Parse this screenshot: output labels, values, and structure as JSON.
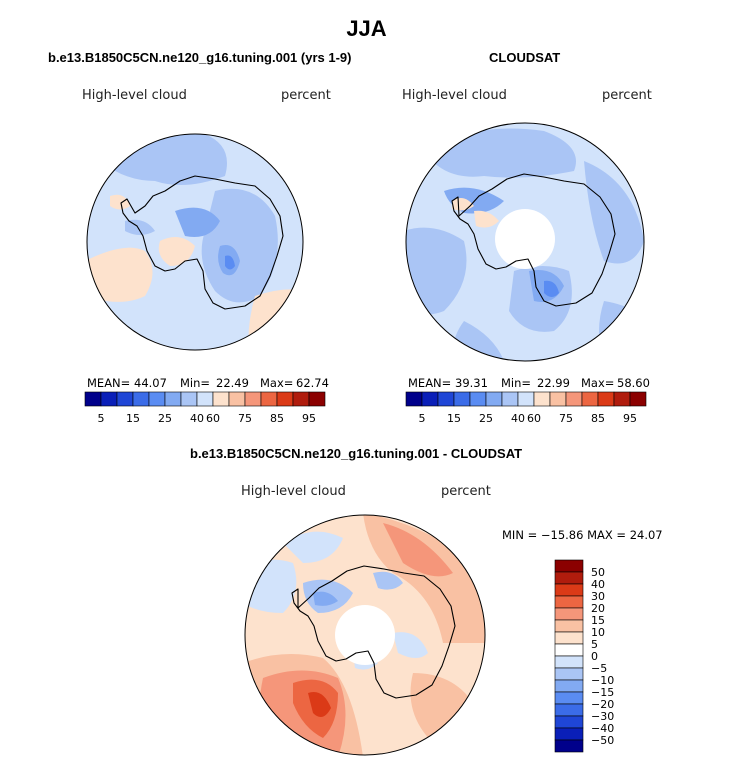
{
  "header": {
    "season": "JJA"
  },
  "panels": [
    {
      "title": "b.e13.B1850C5CN.ne120_g16.tuning.001 (yrs 1-9)",
      "variable": "High-level cloud",
      "units": "percent",
      "stats": {
        "mean_label": "MEAN=",
        "mean": "44.07",
        "min_label": "Min=",
        "min": "22.49",
        "max_label": "Max=",
        "max": "62.74"
      }
    },
    {
      "title": "CLOUDSAT",
      "variable": "High-level cloud",
      "units": "percent",
      "stats": {
        "mean_label": "MEAN=",
        "mean": "39.31",
        "min_label": "Min=",
        "min": "22.99",
        "max_label": "Max=",
        "max": "58.60"
      }
    }
  ],
  "diff_panel": {
    "title": "b.e13.B1850C5CN.ne120_g16.tuning.001 - CLOUDSAT",
    "variable": "High-level cloud",
    "units": "percent",
    "minmax": "MIN = −15.86 MAX =  24.07"
  },
  "colors": {
    "abs_scale": [
      "#00008b",
      "#0a1fb8",
      "#1f46d6",
      "#3b6ce8",
      "#5a8cf2",
      "#82aaf2",
      "#aac5f5",
      "#d2e3fb",
      "#fde2cd",
      "#f9c1a3",
      "#f5967a",
      "#ec6642",
      "#db3a17",
      "#b01c0d",
      "#8b0000"
    ],
    "diff_scale": [
      "#00008b",
      "#0a1fb8",
      "#1f46d6",
      "#3b6ce8",
      "#5a8cf2",
      "#82aaf2",
      "#aac5f5",
      "#d2e3fb",
      "#ffffff",
      "#fde2cd",
      "#f9c1a3",
      "#f5967a",
      "#ec6642",
      "#db3a17",
      "#b01c0d",
      "#8b0000"
    ]
  },
  "chart_data": [
    {
      "type": "heatmap",
      "title": "b.e13.B1850C5CN.ne120_g16.tuning.001 (yrs 1-9)",
      "variable": "High-level cloud",
      "units": "percent",
      "projection": "south polar stereographic",
      "colorbar_ticks": [
        "5",
        "15",
        "25",
        "40",
        "60",
        "75",
        "85",
        "95"
      ],
      "mean": 44.07,
      "min": 22.49,
      "max": 62.74
    },
    {
      "type": "heatmap",
      "title": "CLOUDSAT",
      "variable": "High-level cloud",
      "units": "percent",
      "projection": "south polar stereographic",
      "colorbar_ticks": [
        "5",
        "15",
        "25",
        "40",
        "60",
        "75",
        "85",
        "95"
      ],
      "mean": 39.31,
      "min": 22.99,
      "max": 58.6
    },
    {
      "type": "heatmap",
      "title": "b.e13.B1850C5CN.ne120_g16.tuning.001 - CLOUDSAT",
      "variable": "High-level cloud",
      "units": "percent",
      "projection": "south polar stereographic",
      "colorbar_ticks": [
        "50",
        "40",
        "30",
        "20",
        "15",
        "10",
        "5",
        "0",
        "−5",
        "−10",
        "−15",
        "−20",
        "−30",
        "−40",
        "−50"
      ],
      "min": -15.86,
      "max": 24.07
    }
  ]
}
